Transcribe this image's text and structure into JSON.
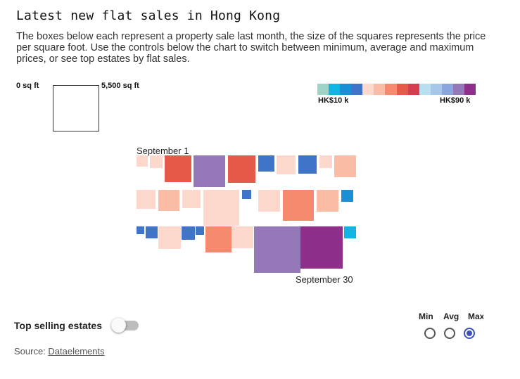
{
  "title": "Latest new flat sales in Hong Kong",
  "description": "The boxes below each represent a property sale last month, the size of the squares represents the price per square foot. Use the controls below the chart to switch between minimum, average and maximum prices, or see top estates by flat sales.",
  "size_legend": {
    "min_label": "0 sq ft",
    "max_label": "5,500 sq ft"
  },
  "color_legend": {
    "min_label": "HK$10 k",
    "max_label": "HK$90 k",
    "colors": [
      "#9ed4c8",
      "#11b5e3",
      "#1b8fd6",
      "#3f74c8",
      "#fdd9cd",
      "#fbbca6",
      "#f58a6e",
      "#e65a4c",
      "#d63e4f",
      "#b9dff0",
      "#a6c6ea",
      "#8aa6dc",
      "#9578b8",
      "#8e2f8c"
    ]
  },
  "start_label": "September 1",
  "end_label": "September 30",
  "toggle": {
    "label": "Top selling estates",
    "on": false
  },
  "source": {
    "prefix": "Source: ",
    "link": "Dataelements"
  },
  "price_modes": {
    "options": [
      "Min",
      "Avg",
      "Max"
    ],
    "selected": "Max"
  }
}
